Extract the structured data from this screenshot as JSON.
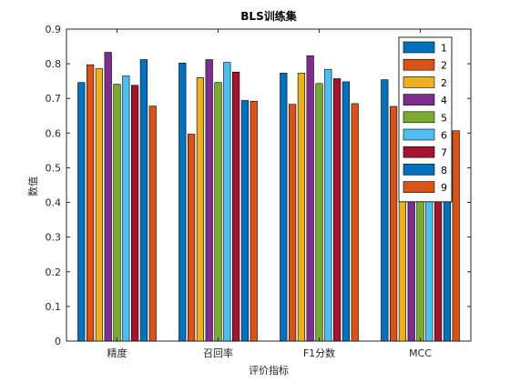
{
  "chart_data": {
    "type": "bar",
    "title": "BLS训练集",
    "xlabel": "评价指标",
    "ylabel": "数值",
    "categories": [
      "精度",
      "召回率",
      "F1分数",
      "MCC"
    ],
    "ylim": [
      0,
      0.9
    ],
    "yticks": [
      "0",
      "0.1",
      "0.2",
      "0.3",
      "0.4",
      "0.5",
      "0.6",
      "0.7",
      "0.8",
      "0.9"
    ],
    "grid": false,
    "legend_position": "top-right",
    "series": [
      {
        "name": "1",
        "color": "#0072BD",
        "values": [
          0.746,
          0.802,
          0.773,
          0.754
        ]
      },
      {
        "name": "2",
        "color": "#D95319",
        "values": [
          0.797,
          0.597,
          0.683,
          0.677
        ]
      },
      {
        "name": "2",
        "color": "#EDB120",
        "values": [
          0.786,
          0.76,
          0.773,
          0.762
        ]
      },
      {
        "name": "4",
        "color": "#7E2F8E",
        "values": [
          0.833,
          0.812,
          0.823,
          0.81
        ]
      },
      {
        "name": "5",
        "color": "#77AC30",
        "values": [
          0.741,
          0.746,
          0.743,
          0.738
        ]
      },
      {
        "name": "6",
        "color": "#4DBEEE",
        "values": [
          0.765,
          0.804,
          0.784,
          0.781
        ]
      },
      {
        "name": "7",
        "color": "#A2142F",
        "values": [
          0.738,
          0.776,
          0.757,
          0.74
        ]
      },
      {
        "name": "8",
        "color": "#0072BD",
        "values": [
          0.812,
          0.694,
          0.748,
          0.735
        ]
      },
      {
        "name": "9",
        "color": "#D95319",
        "values": [
          0.678,
          0.692,
          0.685,
          0.607
        ]
      }
    ]
  }
}
